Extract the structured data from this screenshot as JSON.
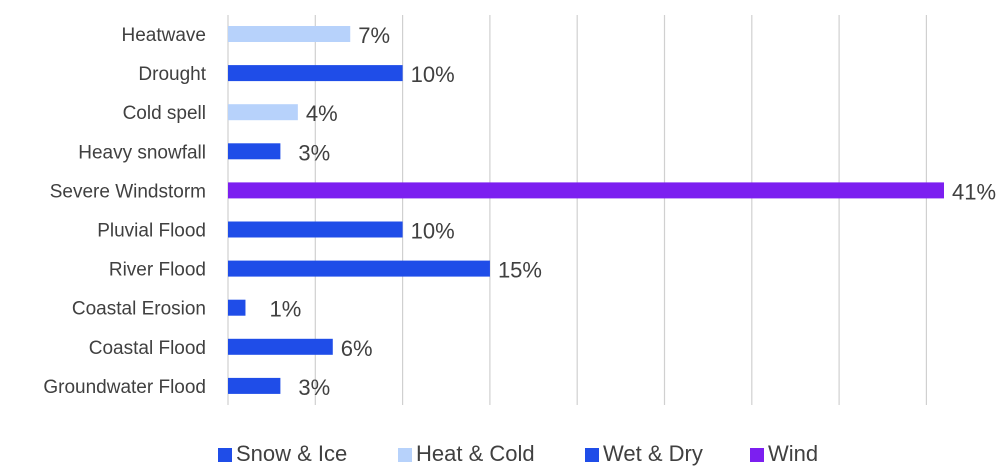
{
  "colors": {
    "snow_ice": "#1f4de8",
    "heat_cold": "#b7d2fb",
    "wet_dry": "#1f4de8",
    "wind": "#7c1ff0",
    "grid": "#d0d0d0",
    "text": "#404040"
  },
  "chart_data": {
    "type": "bar",
    "orientation": "horizontal",
    "title": "",
    "xlabel": "",
    "ylabel": "",
    "xlim": [
      0,
      41
    ],
    "grid": "vertical",
    "value_format": "percent",
    "legend_position": "bottom",
    "legend": [
      {
        "key": "snow_ice",
        "label": "Snow & Ice"
      },
      {
        "key": "heat_cold",
        "label": "Heat & Cold"
      },
      {
        "key": "wet_dry",
        "label": "Wet & Dry"
      },
      {
        "key": "wind",
        "label": "Wind"
      }
    ],
    "bars": [
      {
        "category": "Heatwave",
        "value": 7,
        "label": "7%",
        "group": "heat_cold"
      },
      {
        "category": "Drought",
        "value": 10,
        "label": "10%",
        "group": "wet_dry"
      },
      {
        "category": "Cold spell",
        "value": 4,
        "label": "4%",
        "group": "heat_cold"
      },
      {
        "category": "Heavy snowfall",
        "value": 3,
        "label": "3%",
        "group": "snow_ice"
      },
      {
        "category": "Severe Windstorm",
        "value": 41,
        "label": "41%",
        "group": "wind"
      },
      {
        "category": "Pluvial Flood",
        "value": 10,
        "label": "10%",
        "group": "wet_dry"
      },
      {
        "category": "River Flood",
        "value": 15,
        "label": "15%",
        "group": "wet_dry"
      },
      {
        "category": "Coastal Erosion",
        "value": 1,
        "label": "1%",
        "group": "wet_dry"
      },
      {
        "category": "Coastal Flood",
        "value": 6,
        "label": "6%",
        "group": "wet_dry"
      },
      {
        "category": "Groundwater Flood",
        "value": 3,
        "label": "3%",
        "group": "wet_dry"
      }
    ]
  }
}
